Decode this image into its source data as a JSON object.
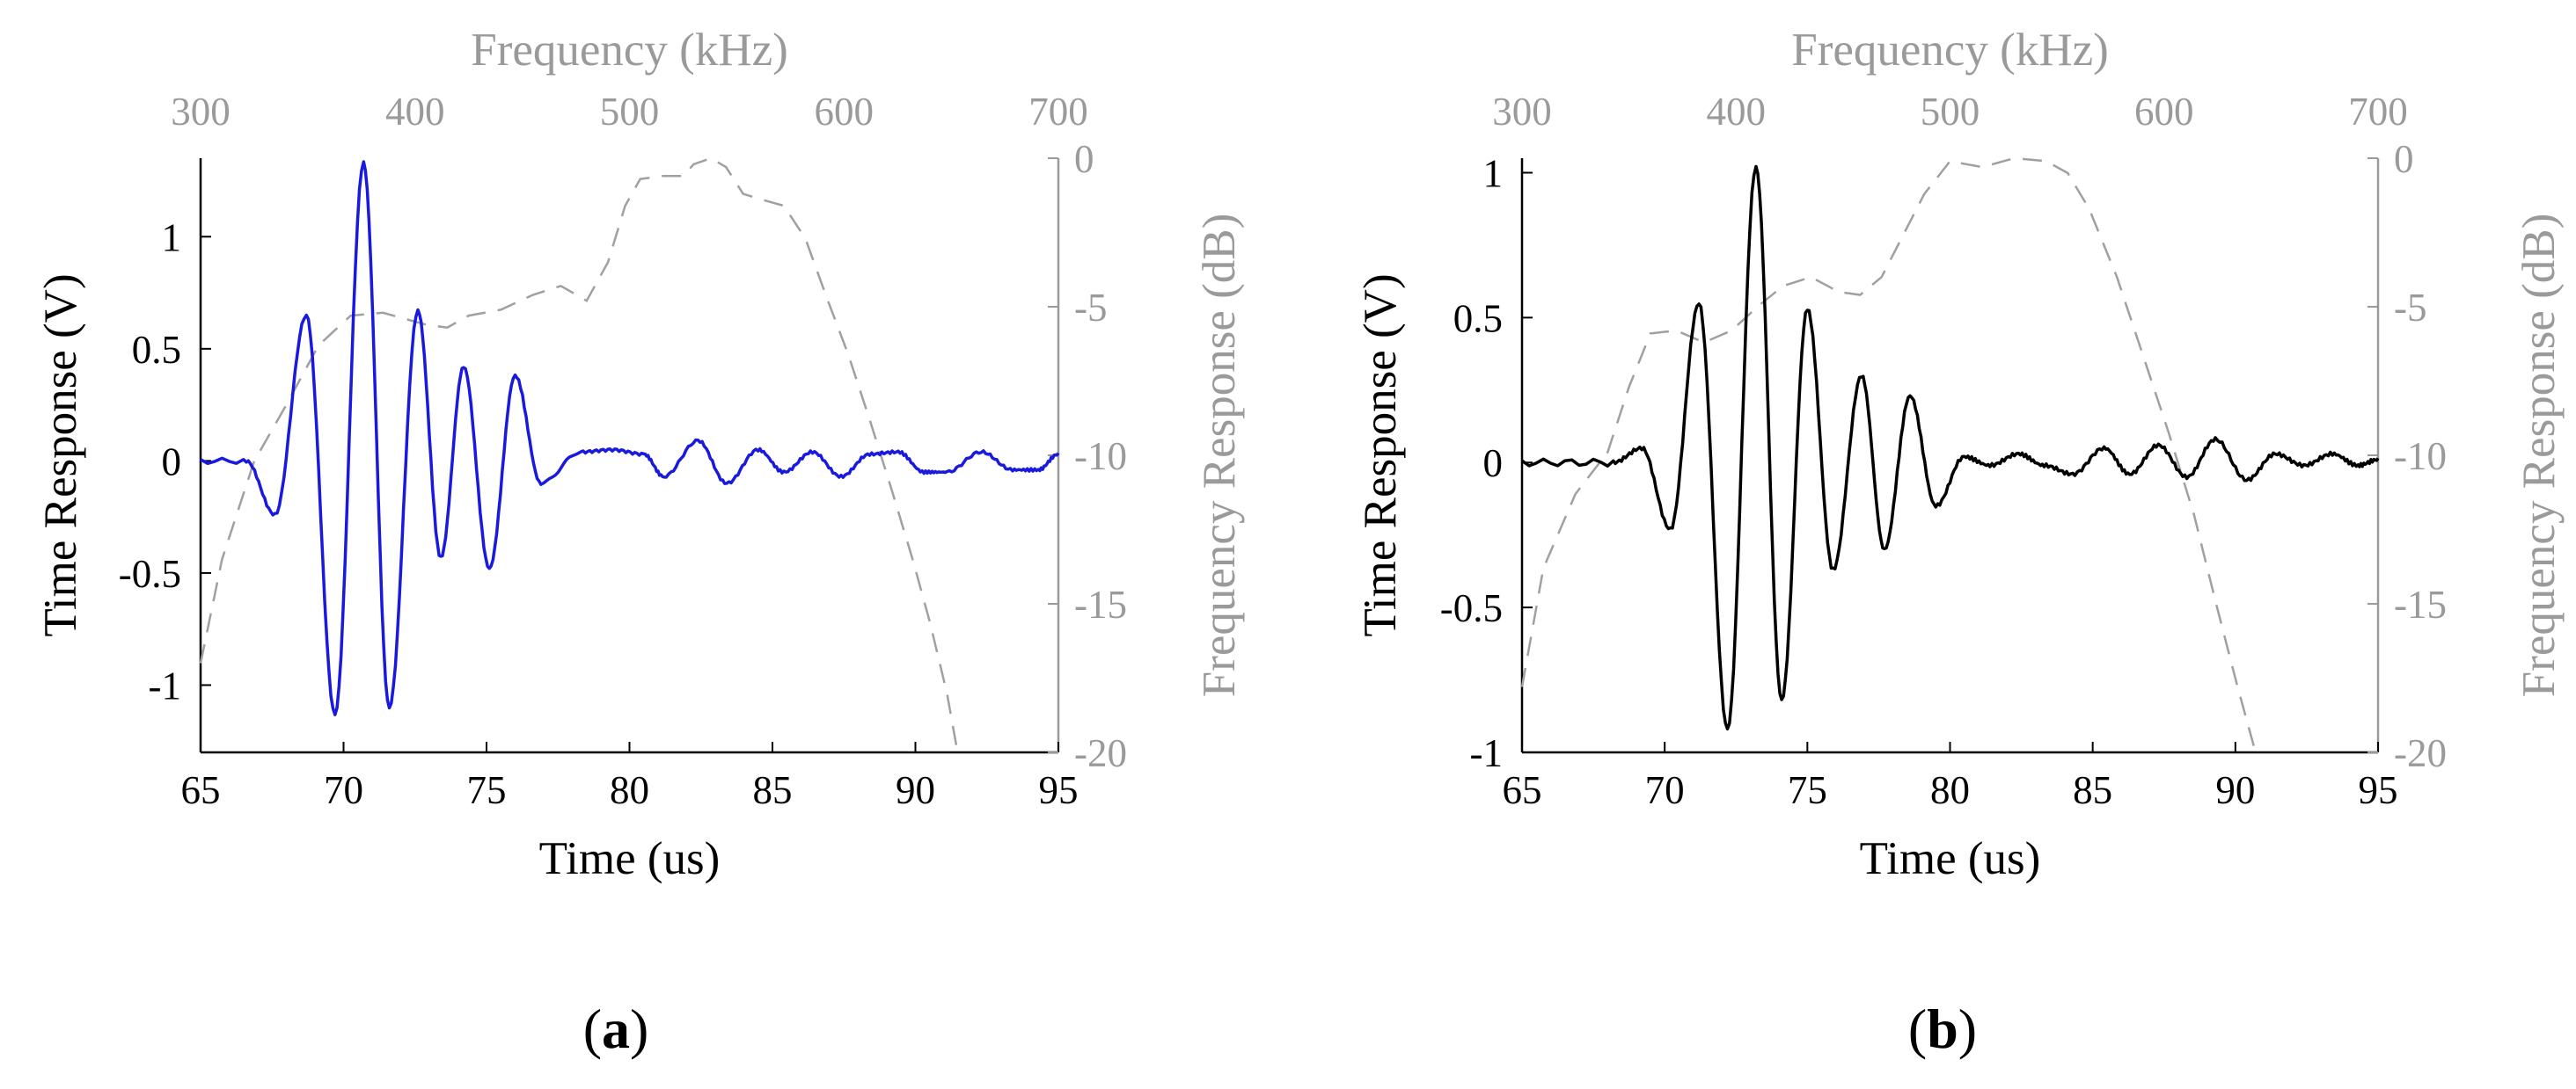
{
  "chart_data": [
    {
      "panel_label": "a",
      "type": "line",
      "x_axis": {
        "label": "Time (us)",
        "range": [
          65,
          95
        ],
        "ticks": [
          65,
          70,
          75,
          80,
          85,
          90,
          95
        ]
      },
      "y_axis": {
        "label": "Time Response (V)",
        "range": [
          -1.3,
          1.35
        ],
        "ticks": [
          -1,
          -0.5,
          0,
          0.5,
          1
        ]
      },
      "x2_axis": {
        "label": "Frequency (kHz)",
        "range": [
          300,
          700
        ],
        "ticks": [
          300,
          400,
          500,
          600,
          700
        ]
      },
      "y2_axis": {
        "label": "Frequency Response (dB)",
        "range": [
          -20,
          0
        ],
        "ticks": [
          0,
          -5,
          -10,
          -15,
          -20
        ]
      },
      "time_signal": {
        "name": "Time Response",
        "color": "#1a1adf",
        "burst_peaks": [
          [
            67.6,
            -0.24
          ],
          [
            68.7,
            0.65
          ],
          [
            69.7,
            -1.13
          ],
          [
            70.7,
            1.33
          ],
          [
            71.6,
            -1.1
          ],
          [
            72.6,
            0.67
          ],
          [
            73.4,
            -0.43
          ],
          [
            74.2,
            0.42
          ],
          [
            75.1,
            -0.48
          ],
          [
            76.0,
            0.38
          ],
          [
            76.9,
            -0.1
          ]
        ],
        "ripple_peaks": [
          [
            78.3,
            0.04
          ],
          [
            79.4,
            0.05
          ],
          [
            80.5,
            0.03
          ],
          [
            81.2,
            -0.07
          ],
          [
            82.4,
            0.09
          ],
          [
            83.4,
            -0.1
          ],
          [
            84.5,
            0.05
          ],
          [
            85.4,
            -0.05
          ],
          [
            86.4,
            0.04
          ],
          [
            87.4,
            -0.07
          ],
          [
            88.4,
            0.03
          ],
          [
            89.4,
            0.04
          ],
          [
            90.3,
            -0.05
          ],
          [
            91.1,
            -0.05
          ],
          [
            92.3,
            0.04
          ],
          [
            93.4,
            -0.04
          ],
          [
            94.3,
            -0.04
          ],
          [
            95.0,
            0.03
          ]
        ]
      },
      "frequency_response": {
        "name": "Frequency Response",
        "color": "#a0a0a0",
        "dash": true,
        "points": [
          [
            300,
            -17
          ],
          [
            310,
            -13.5
          ],
          [
            325,
            -10.2
          ],
          [
            340,
            -8.3
          ],
          [
            355,
            -6.3
          ],
          [
            370,
            -5.3
          ],
          [
            385,
            -5.2
          ],
          [
            395,
            -5.4
          ],
          [
            405,
            -5.6
          ],
          [
            415,
            -5.7
          ],
          [
            425,
            -5.3
          ],
          [
            440,
            -5.1
          ],
          [
            455,
            -4.6
          ],
          [
            468,
            -4.3
          ],
          [
            480,
            -4.8
          ],
          [
            490,
            -3.5
          ],
          [
            498,
            -1.6
          ],
          [
            505,
            -0.7
          ],
          [
            515,
            -0.6
          ],
          [
            525,
            -0.6
          ],
          [
            530,
            -0.2
          ],
          [
            538,
            0
          ],
          [
            545,
            -0.3
          ],
          [
            553,
            -1.2
          ],
          [
            562,
            -1.4
          ],
          [
            572,
            -1.6
          ],
          [
            582,
            -2.7
          ],
          [
            592,
            -4.7
          ],
          [
            602,
            -6.6
          ],
          [
            612,
            -8.8
          ],
          [
            622,
            -11.1
          ],
          [
            632,
            -13.5
          ],
          [
            640,
            -15.6
          ],
          [
            648,
            -18.0
          ],
          [
            653,
            -20.0
          ]
        ]
      }
    },
    {
      "panel_label": "b",
      "type": "line",
      "x_axis": {
        "label": "Time (us)",
        "range": [
          65,
          95
        ],
        "ticks": [
          65,
          70,
          75,
          80,
          85,
          90,
          95
        ]
      },
      "y_axis": {
        "label": "Time Response (V)",
        "range": [
          -1.0,
          1.05
        ],
        "ticks": [
          -1,
          -0.5,
          0,
          0.5,
          1
        ]
      },
      "x2_axis": {
        "label": "Frequency (kHz)",
        "range": [
          300,
          700
        ],
        "ticks": [
          300,
          400,
          500,
          600,
          700
        ]
      },
      "y2_axis": {
        "label": "Frequency Response (dB)",
        "range": [
          -20,
          0
        ],
        "ticks": [
          0,
          -5,
          -10,
          -15,
          -20
        ]
      },
      "time_signal": {
        "name": "Time Response",
        "color": "#000000",
        "burst_peaks": [
          [
            69.2,
            0.05
          ],
          [
            70.2,
            -0.23
          ],
          [
            71.2,
            0.55
          ],
          [
            72.2,
            -0.92
          ],
          [
            73.2,
            1.02
          ],
          [
            74.1,
            -0.82
          ],
          [
            75.0,
            0.53
          ],
          [
            75.9,
            -0.37
          ],
          [
            76.9,
            0.3
          ],
          [
            77.7,
            -0.3
          ],
          [
            78.6,
            0.23
          ],
          [
            79.5,
            -0.15
          ]
        ],
        "ripple_peaks": [
          [
            80.5,
            0.02
          ],
          [
            81.4,
            -0.01
          ],
          [
            82.4,
            0.03
          ],
          [
            83.3,
            -0.01
          ],
          [
            84.3,
            -0.04
          ],
          [
            85.4,
            0.05
          ],
          [
            86.3,
            -0.04
          ],
          [
            87.3,
            0.06
          ],
          [
            88.3,
            -0.05
          ],
          [
            89.3,
            0.08
          ],
          [
            90.4,
            -0.06
          ],
          [
            91.4,
            0.03
          ],
          [
            92.4,
            -0.01
          ],
          [
            93.4,
            0.03
          ],
          [
            94.3,
            -0.01
          ],
          [
            95.0,
            0.01
          ]
        ]
      },
      "frequency_response": {
        "name": "Frequency Response",
        "color": "#a0a0a0",
        "dash": true,
        "points": [
          [
            300,
            -17.8
          ],
          [
            310,
            -13.8
          ],
          [
            325,
            -11.3
          ],
          [
            340,
            -9.9
          ],
          [
            350,
            -7.7
          ],
          [
            360,
            -5.9
          ],
          [
            372,
            -5.8
          ],
          [
            385,
            -6.2
          ],
          [
            398,
            -5.8
          ],
          [
            410,
            -5.0
          ],
          [
            422,
            -4.3
          ],
          [
            435,
            -4.0
          ],
          [
            448,
            -4.5
          ],
          [
            458,
            -4.6
          ],
          [
            468,
            -4.0
          ],
          [
            478,
            -2.6
          ],
          [
            488,
            -1.2
          ],
          [
            500,
            -0.1
          ],
          [
            515,
            -0.3
          ],
          [
            530,
            0
          ],
          [
            545,
            -0.1
          ],
          [
            555,
            -0.5
          ],
          [
            565,
            -1.7
          ],
          [
            578,
            -4.0
          ],
          [
            590,
            -6.6
          ],
          [
            602,
            -9.2
          ],
          [
            614,
            -12.0
          ],
          [
            624,
            -14.9
          ],
          [
            634,
            -17.7
          ],
          [
            642,
            -19.8
          ]
        ]
      }
    }
  ]
}
